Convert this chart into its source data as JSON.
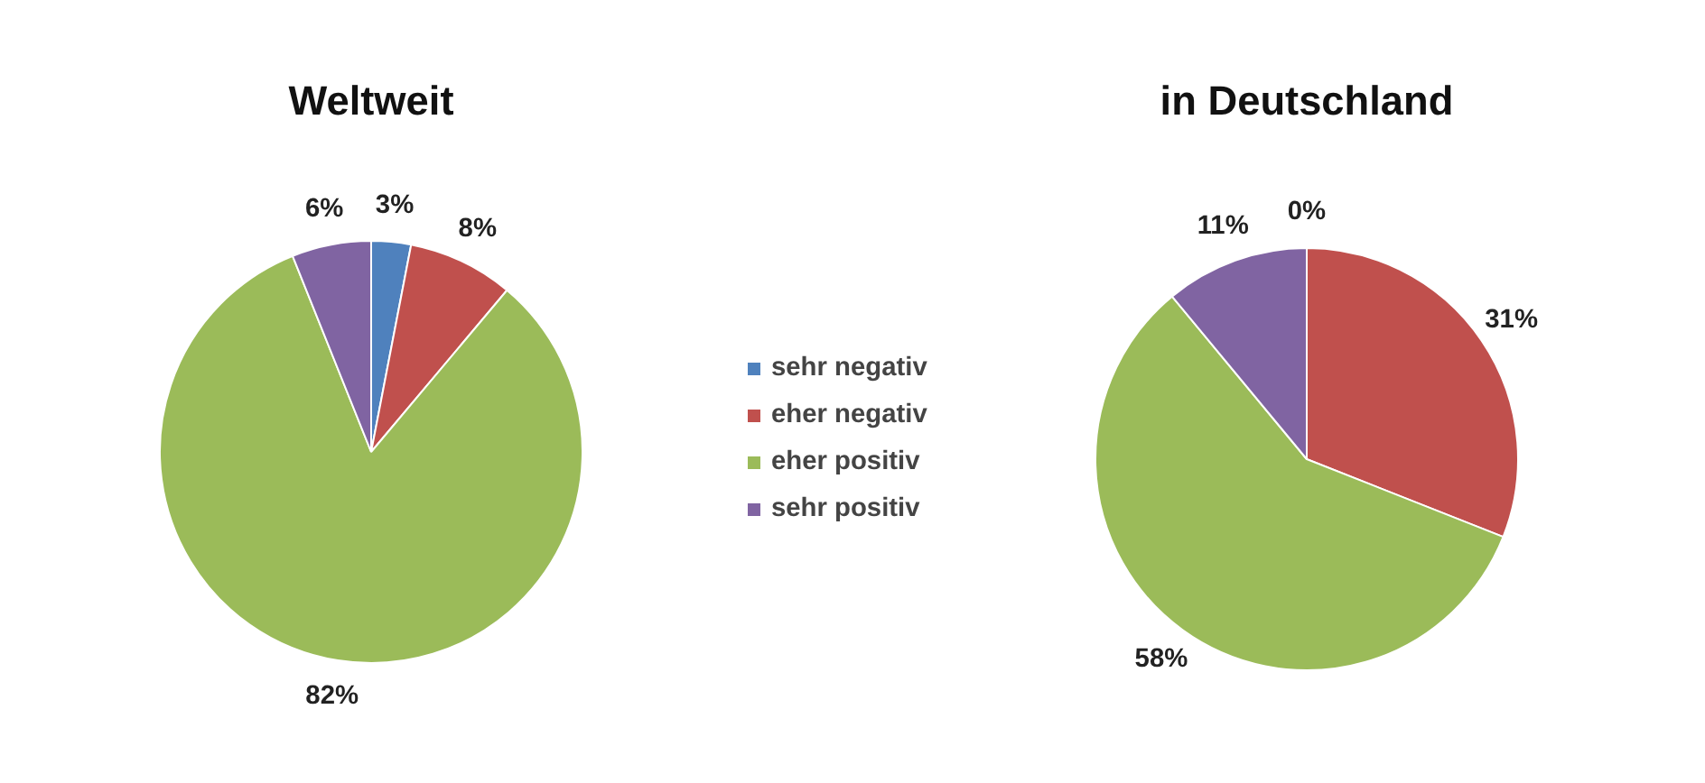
{
  "chart_data": [
    {
      "type": "pie",
      "title": "Weltweit",
      "categories": [
        "sehr negativ",
        "eher negativ",
        "eher positiv",
        "sehr positiv"
      ],
      "values": [
        3,
        8,
        82,
        6
      ],
      "value_labels": [
        "3%",
        "8%",
        "82%",
        "6%"
      ],
      "colors": [
        "#4f81bd",
        "#c0504d",
        "#9bbb59",
        "#8064a2"
      ],
      "legend": "right"
    },
    {
      "type": "pie",
      "title": "in Deutschland",
      "categories": [
        null,
        null,
        null,
        null
      ],
      "values": [
        0,
        31,
        58,
        11
      ],
      "value_labels": [
        "0%",
        "31%",
        "58%",
        "11%"
      ],
      "colors": [
        "#4f81bd",
        "#c0504d",
        "#9bbb59",
        "#8064a2"
      ]
    }
  ]
}
